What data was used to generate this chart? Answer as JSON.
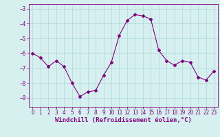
{
  "x": [
    0,
    1,
    2,
    3,
    4,
    5,
    6,
    7,
    8,
    9,
    10,
    11,
    12,
    13,
    14,
    15,
    16,
    17,
    18,
    19,
    20,
    21,
    22,
    23
  ],
  "y": [
    -6.0,
    -6.3,
    -6.9,
    -6.5,
    -6.9,
    -8.0,
    -8.9,
    -8.6,
    -8.5,
    -7.5,
    -6.6,
    -4.8,
    -3.8,
    -3.4,
    -3.5,
    -3.7,
    -5.8,
    -6.5,
    -6.8,
    -6.5,
    -6.6,
    -7.6,
    -7.8,
    -7.2
  ],
  "line_color": "#800080",
  "marker": "D",
  "marker_size": 2,
  "linewidth": 0.8,
  "xlim": [
    -0.5,
    23.5
  ],
  "ylim": [
    -9.6,
    -2.7
  ],
  "yticks": [
    -9,
    -8,
    -7,
    -6,
    -5,
    -4,
    -3
  ],
  "xticks": [
    0,
    1,
    2,
    3,
    4,
    5,
    6,
    7,
    8,
    9,
    10,
    11,
    12,
    13,
    14,
    15,
    16,
    17,
    18,
    19,
    20,
    21,
    22,
    23
  ],
  "xlabel": "Windchill (Refroidissement éolien,°C)",
  "bg_color": "#d6f0f0",
  "grid_color": "#b0d8d8",
  "tick_color": "#800080",
  "label_color": "#800080",
  "tick_fontsize": 5.5,
  "xlabel_fontsize": 6.5
}
